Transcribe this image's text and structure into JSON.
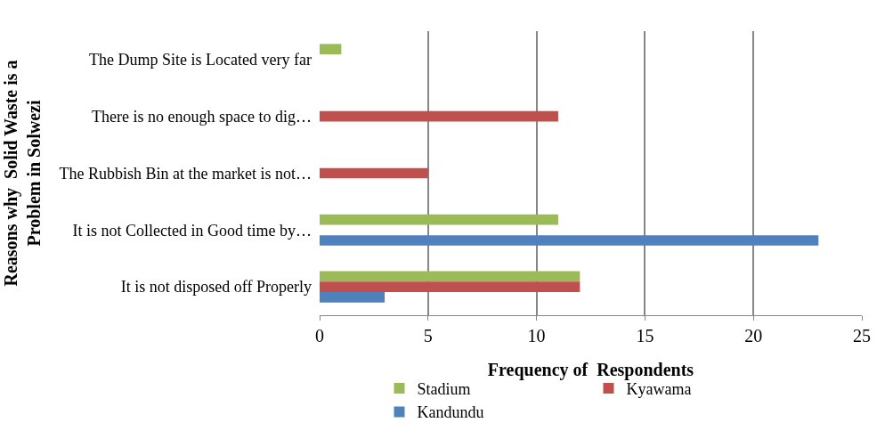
{
  "chart_data": {
    "type": "bar",
    "orientation": "horizontal",
    "categories": [
      "The Dump Site is Located very far",
      "There is no enough space to dig…",
      "The Rubbish Bin at the market is not…",
      "It is not Collected in Good time by…",
      "It is not disposed off Properly"
    ],
    "series": [
      {
        "name": "Stadium",
        "color": "#9bbb59",
        "values": [
          1,
          null,
          null,
          11,
          12
        ]
      },
      {
        "name": "Kyawama",
        "color": "#c0504d",
        "values": [
          null,
          11,
          5,
          null,
          12
        ]
      },
      {
        "name": "Kandundu",
        "color": "#4f81bd",
        "values": [
          null,
          null,
          null,
          23,
          3
        ]
      }
    ],
    "xlabel": "Frequency of  Respondents",
    "ylabel": "Reasons why  Solid Waste is a\nProblem in Solwezi",
    "xlim": [
      0,
      25
    ],
    "xticks": [
      0,
      5,
      10,
      15,
      20,
      25
    ],
    "grid": "x",
    "legend": "bottom"
  }
}
